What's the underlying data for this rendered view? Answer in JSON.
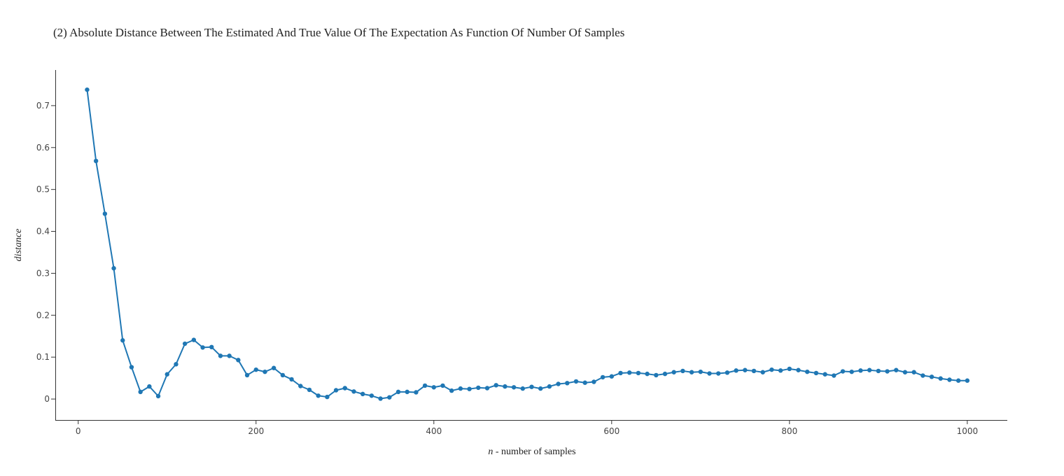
{
  "chart_data": {
    "type": "line",
    "title": "(2) Absolute Distance Between The Estimated And True Value Of The Expectation As Function Of Number Of Samples",
    "xlabel_italic": "n",
    "xlabel_rest": " - number of samples",
    "ylabel": "distance",
    "xlim": [
      -25,
      1045
    ],
    "ylim": [
      -0.05,
      0.785
    ],
    "xticks": [
      0,
      200,
      400,
      600,
      800,
      1000
    ],
    "yticks": [
      0,
      0.1,
      0.2,
      0.3,
      0.4,
      0.5,
      0.6,
      0.7
    ],
    "ytick_labels": [
      "0",
      "0.1",
      "0.2",
      "0.3",
      "0.4",
      "0.5",
      "0.6",
      "0.7"
    ],
    "grid": false,
    "series": [
      {
        "color": "#1f77b4",
        "x": [
          10,
          20,
          30,
          40,
          50,
          60,
          70,
          80,
          90,
          100,
          110,
          120,
          130,
          140,
          150,
          160,
          170,
          180,
          190,
          200,
          210,
          220,
          230,
          240,
          250,
          260,
          270,
          280,
          290,
          300,
          310,
          320,
          330,
          340,
          350,
          360,
          370,
          380,
          390,
          400,
          410,
          420,
          430,
          440,
          450,
          460,
          470,
          480,
          490,
          500,
          510,
          520,
          530,
          540,
          550,
          560,
          570,
          580,
          590,
          600,
          610,
          620,
          630,
          640,
          650,
          660,
          670,
          680,
          690,
          700,
          710,
          720,
          730,
          740,
          750,
          760,
          770,
          780,
          790,
          800,
          810,
          820,
          830,
          840,
          850,
          860,
          870,
          880,
          890,
          900,
          910,
          920,
          930,
          940,
          950,
          960,
          970,
          980,
          990,
          1000
        ],
        "y": [
          0.738,
          0.568,
          0.442,
          0.312,
          0.14,
          0.076,
          0.017,
          0.03,
          0.007,
          0.059,
          0.083,
          0.132,
          0.141,
          0.123,
          0.124,
          0.103,
          0.103,
          0.093,
          0.057,
          0.07,
          0.065,
          0.074,
          0.057,
          0.047,
          0.031,
          0.022,
          0.008,
          0.005,
          0.021,
          0.026,
          0.018,
          0.012,
          0.008,
          0.001,
          0.004,
          0.017,
          0.017,
          0.016,
          0.032,
          0.028,
          0.032,
          0.02,
          0.025,
          0.024,
          0.027,
          0.026,
          0.033,
          0.03,
          0.028,
          0.025,
          0.029,
          0.025,
          0.03,
          0.036,
          0.038,
          0.042,
          0.039,
          0.041,
          0.052,
          0.054,
          0.062,
          0.063,
          0.062,
          0.06,
          0.057,
          0.06,
          0.064,
          0.067,
          0.064,
          0.065,
          0.061,
          0.061,
          0.063,
          0.068,
          0.069,
          0.067,
          0.064,
          0.07,
          0.068,
          0.072,
          0.069,
          0.065,
          0.062,
          0.059,
          0.056,
          0.066,
          0.065,
          0.068,
          0.069,
          0.067,
          0.066,
          0.069,
          0.064,
          0.064,
          0.056,
          0.053,
          0.049,
          0.046,
          0.044,
          0.044
        ]
      }
    ]
  }
}
